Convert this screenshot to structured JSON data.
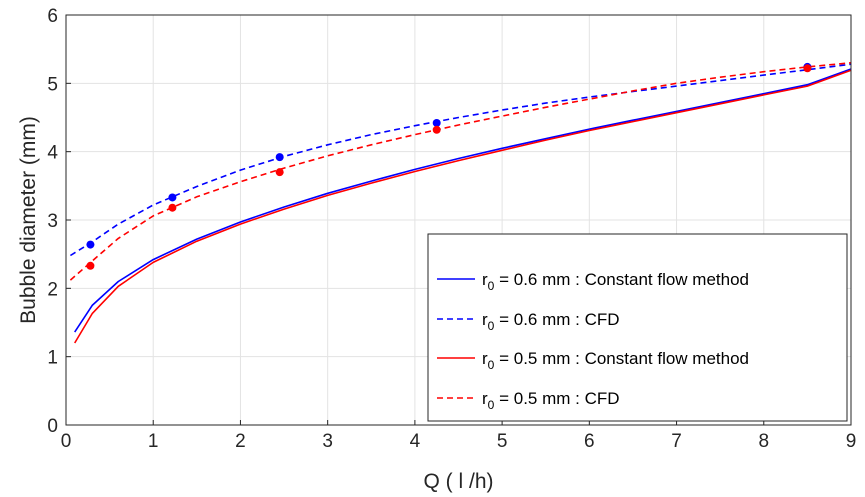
{
  "chart_data": {
    "type": "line",
    "xlabel": "Q ( l /h)",
    "ylabel": "Bubble diameter (mm)",
    "xlim": [
      0,
      9
    ],
    "ylim": [
      0,
      6
    ],
    "xticks": [
      "0",
      "1",
      "2",
      "3",
      "4",
      "5",
      "6",
      "7",
      "8",
      "9"
    ],
    "yticks": [
      "0",
      "1",
      "2",
      "3",
      "4",
      "5",
      "6"
    ],
    "grid": true,
    "legend_position": "bottom-right",
    "series": [
      {
        "name": "r0 = 0.6 mm : Constant flow method",
        "label_main": "r",
        "label_sub": "0",
        "label_rest": " = 0.6 mm : Constant flow method",
        "color": "#0000ff",
        "dash": "solid",
        "x": [
          0.1,
          0.3,
          0.6,
          1.0,
          1.5,
          2.0,
          2.5,
          3.0,
          3.5,
          4.0,
          4.5,
          5.0,
          5.5,
          6.0,
          6.5,
          7.0,
          7.5,
          8.0,
          8.5,
          9.0
        ],
        "y": [
          1.36,
          1.75,
          2.1,
          2.42,
          2.72,
          2.97,
          3.19,
          3.39,
          3.57,
          3.74,
          3.9,
          4.05,
          4.19,
          4.33,
          4.46,
          4.59,
          4.72,
          4.85,
          4.98,
          5.21
        ]
      },
      {
        "name": "r0 = 0.6 mm : CFD",
        "label_main": "r",
        "label_sub": "0",
        "label_rest": " = 0.6 mm : CFD",
        "color": "#0000ff",
        "dash": "dashed",
        "x": [
          0.05,
          0.3,
          0.6,
          1.0,
          1.5,
          2.0,
          2.5,
          3.0,
          3.5,
          4.0,
          4.5,
          5.0,
          5.5,
          6.0,
          6.5,
          7.0,
          7.5,
          8.0,
          8.5,
          9.0
        ],
        "y": [
          2.48,
          2.68,
          2.94,
          3.22,
          3.49,
          3.73,
          3.93,
          4.1,
          4.25,
          4.38,
          4.5,
          4.61,
          4.71,
          4.8,
          4.88,
          4.96,
          5.04,
          5.12,
          5.2,
          5.28
        ]
      },
      {
        "name": "r0 = 0.5 mm : Constant flow method",
        "label_main": "r",
        "label_sub": "0",
        "label_rest": " = 0.5 mm : Constant flow method",
        "color": "#ff0000",
        "dash": "solid",
        "x": [
          0.1,
          0.3,
          0.6,
          1.0,
          1.5,
          2.0,
          2.5,
          3.0,
          3.5,
          4.0,
          4.5,
          5.0,
          5.5,
          6.0,
          6.5,
          7.0,
          7.5,
          8.0,
          8.5,
          9.0
        ],
        "y": [
          1.2,
          1.63,
          2.03,
          2.38,
          2.69,
          2.94,
          3.16,
          3.36,
          3.54,
          3.71,
          3.87,
          4.02,
          4.17,
          4.31,
          4.44,
          4.57,
          4.7,
          4.83,
          4.96,
          5.19
        ]
      },
      {
        "name": "r0 = 0.5 mm : CFD",
        "label_main": "r",
        "label_sub": "0",
        "label_rest": " = 0.5 mm : CFD",
        "color": "#ff0000",
        "dash": "dashed",
        "x": [
          0.05,
          0.3,
          0.6,
          1.0,
          1.5,
          2.0,
          2.5,
          3.0,
          3.5,
          4.0,
          4.5,
          5.0,
          5.5,
          6.0,
          6.5,
          7.0,
          7.5,
          8.0,
          8.5,
          9.0
        ],
        "y": [
          2.12,
          2.4,
          2.73,
          3.06,
          3.34,
          3.56,
          3.76,
          3.94,
          4.1,
          4.25,
          4.39,
          4.52,
          4.65,
          4.77,
          4.89,
          5.0,
          5.09,
          5.17,
          5.24,
          5.3
        ]
      }
    ],
    "points": [
      {
        "color": "#0000ff",
        "x": [
          0.28,
          1.22,
          2.45,
          4.25,
          8.5
        ],
        "y": [
          2.64,
          3.33,
          3.92,
          4.42,
          5.24
        ]
      },
      {
        "color": "#ff0000",
        "x": [
          0.28,
          1.22,
          2.45,
          4.25,
          8.5
        ],
        "y": [
          2.33,
          3.18,
          3.7,
          4.32,
          5.22
        ]
      }
    ]
  }
}
